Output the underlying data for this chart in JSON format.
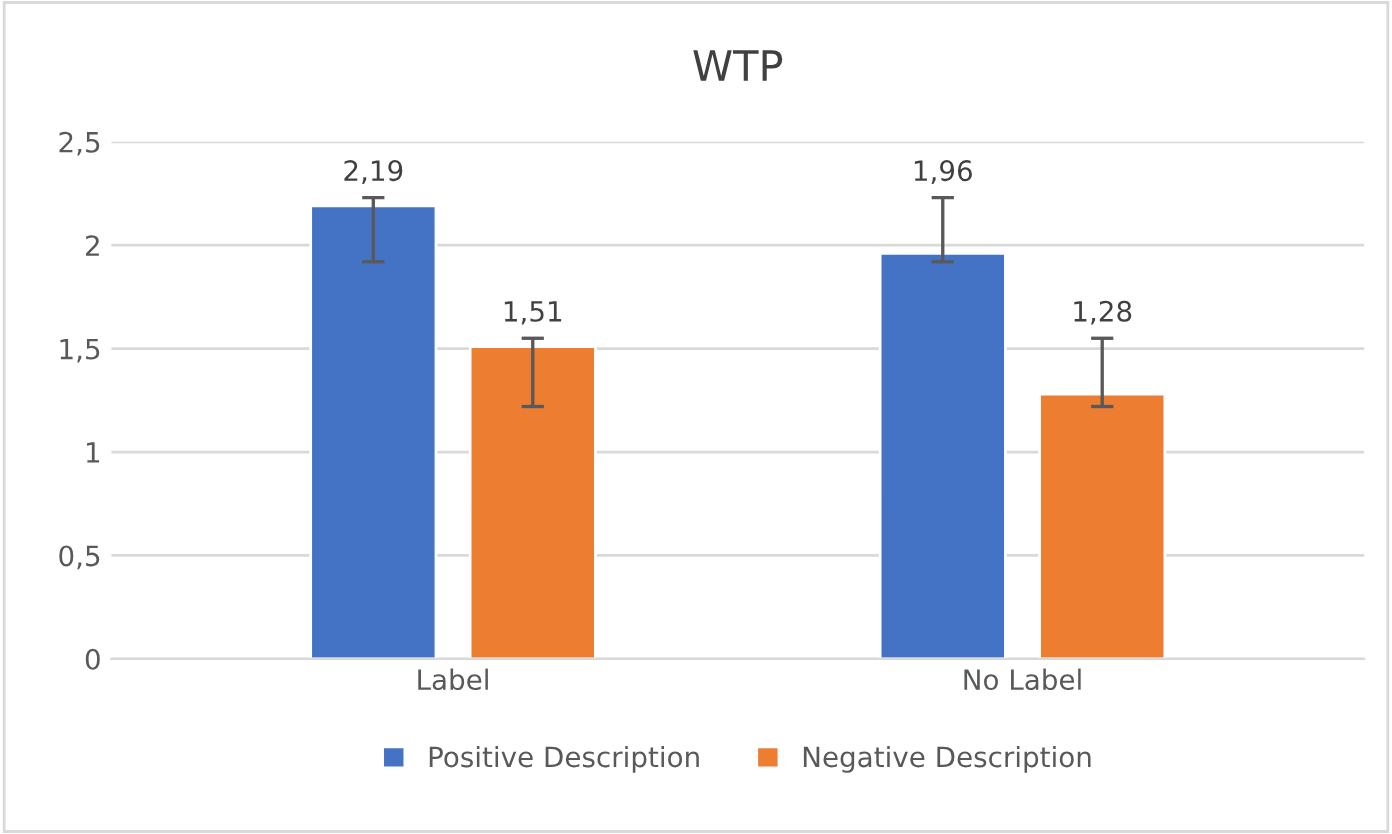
{
  "chart_data": {
    "type": "bar",
    "title": "WTP",
    "categories": [
      "Label",
      "No Label"
    ],
    "series": [
      {
        "name": "Positive Description",
        "color": "#4472c4",
        "values": [
          2.19,
          1.96
        ],
        "value_labels": [
          "2,19",
          "1,96"
        ],
        "errors": [
          [
            1.92,
            2.23
          ],
          [
            1.92,
            2.23
          ]
        ]
      },
      {
        "name": "Negative Description",
        "color": "#ed7d31",
        "values": [
          1.51,
          1.28
        ],
        "value_labels": [
          "1,51",
          "1,28"
        ],
        "errors": [
          [
            1.22,
            1.55
          ],
          [
            1.22,
            1.55
          ]
        ]
      }
    ],
    "ylim": [
      0,
      2.5
    ],
    "yticks": [
      0,
      {
        "value": 0.5,
        "label": "0,5"
      },
      1,
      {
        "value": 1.5,
        "label": "1,5"
      },
      2,
      {
        "value": 2.5,
        "label": "2,5"
      }
    ],
    "grid": "y",
    "legend": "bottom"
  }
}
